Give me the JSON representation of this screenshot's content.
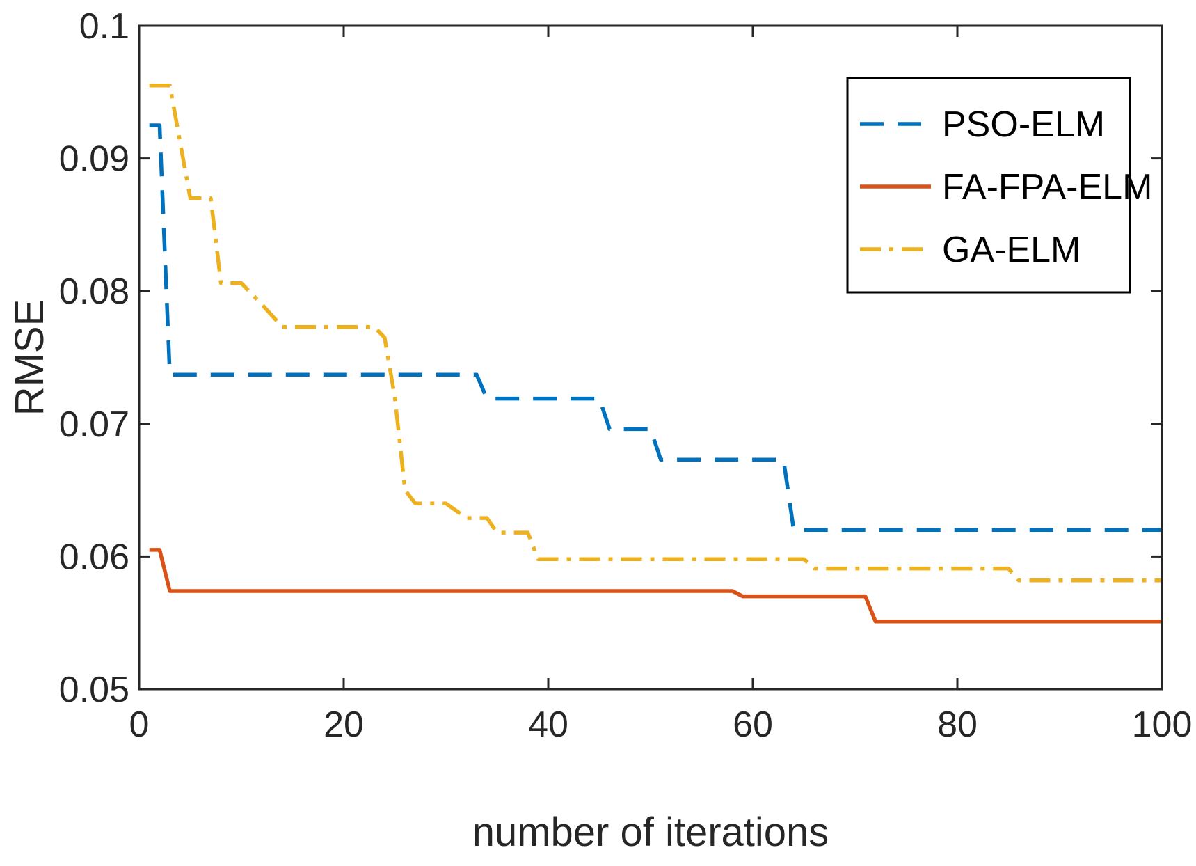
{
  "chart_data": {
    "type": "line",
    "title": "",
    "xlabel": "number of iterations",
    "ylabel": "RMSE",
    "xlim": [
      0,
      100
    ],
    "ylim": [
      0.05,
      0.1
    ],
    "xticks": [
      0,
      20,
      40,
      60,
      80,
      100
    ],
    "xtick_labels": [
      "0",
      "20",
      "40",
      "60",
      "80",
      "100"
    ],
    "yticks": [
      0.05,
      0.06,
      0.07,
      0.08,
      0.09,
      0.1
    ],
    "ytick_labels": [
      "0.05",
      "0.06",
      "0.07",
      "0.08",
      "0.09",
      "0.1"
    ],
    "grid": false,
    "legend_position": "top-right",
    "series": [
      {
        "name": "PSO-ELM",
        "color": "#0072BD",
        "style": "dashed",
        "points": [
          [
            1,
            0.0925
          ],
          [
            2,
            0.0925
          ],
          [
            3,
            0.0737
          ],
          [
            33,
            0.0737
          ],
          [
            34,
            0.0719
          ],
          [
            45,
            0.0719
          ],
          [
            46,
            0.0696
          ],
          [
            50,
            0.0696
          ],
          [
            51,
            0.0673
          ],
          [
            63,
            0.0673
          ],
          [
            64,
            0.062
          ],
          [
            100,
            0.062
          ]
        ]
      },
      {
        "name": "FA-FPA-ELM",
        "color": "#D95319",
        "style": "solid",
        "points": [
          [
            1,
            0.0605
          ],
          [
            2,
            0.0605
          ],
          [
            3,
            0.0574
          ],
          [
            58,
            0.0574
          ],
          [
            59,
            0.057
          ],
          [
            71,
            0.057
          ],
          [
            72,
            0.0551
          ],
          [
            100,
            0.0551
          ]
        ]
      },
      {
        "name": "GA-ELM",
        "color": "#EDB120",
        "style": "dashdot",
        "points": [
          [
            1,
            0.0955
          ],
          [
            3,
            0.0955
          ],
          [
            5,
            0.087
          ],
          [
            7,
            0.087
          ],
          [
            8,
            0.0806
          ],
          [
            10,
            0.0806
          ],
          [
            12,
            0.079
          ],
          [
            14,
            0.0773
          ],
          [
            23,
            0.0773
          ],
          [
            24,
            0.0765
          ],
          [
            25,
            0.072
          ],
          [
            26,
            0.065
          ],
          [
            27,
            0.064
          ],
          [
            30,
            0.064
          ],
          [
            32,
            0.0629
          ],
          [
            34,
            0.0629
          ],
          [
            35,
            0.0618
          ],
          [
            38,
            0.0618
          ],
          [
            39,
            0.0598
          ],
          [
            65,
            0.0598
          ],
          [
            66,
            0.0591
          ],
          [
            85,
            0.0591
          ],
          [
            86,
            0.0582
          ],
          [
            100,
            0.0582
          ]
        ]
      }
    ]
  }
}
